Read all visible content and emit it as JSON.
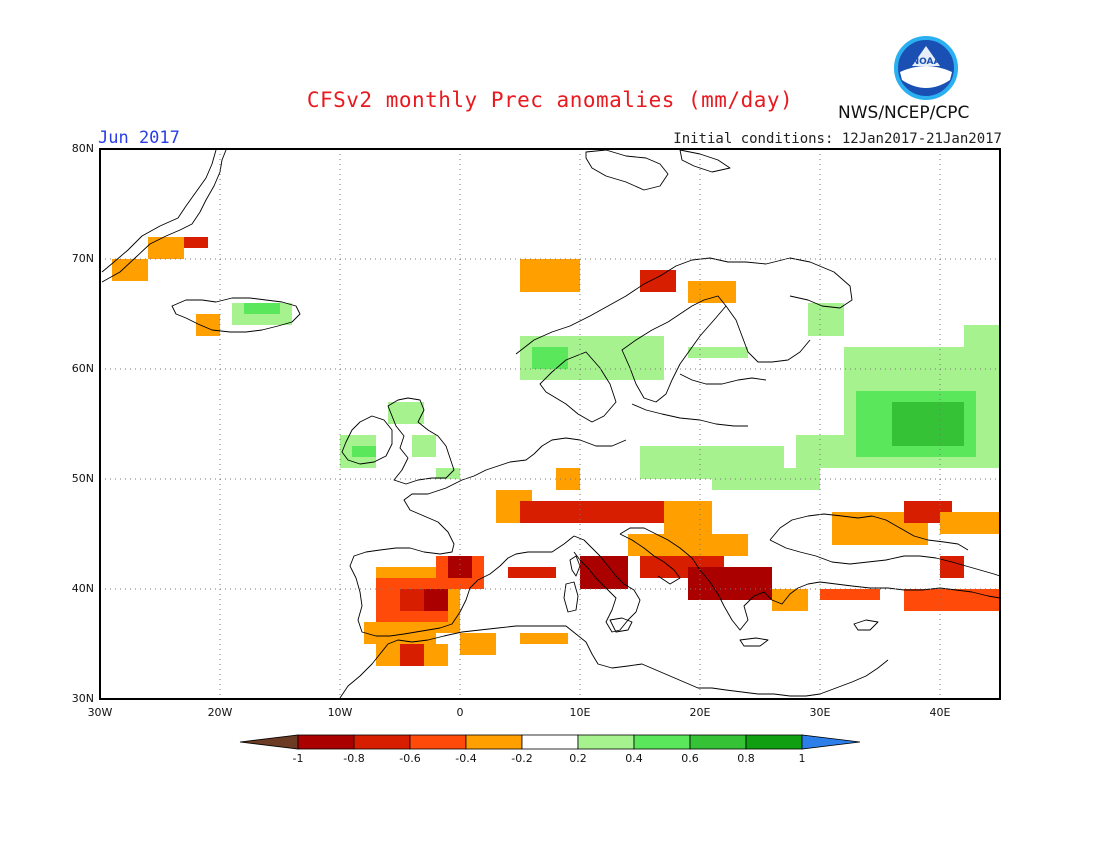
{
  "title": "CFSv2 monthly Prec anomalies (mm/day)",
  "valid_month": "Jun 2017",
  "initial_conditions": "Initial conditions: 12Jan2017-21Jan2017",
  "agency": "NWS/NCEP/CPC",
  "logo_text": "NOAA",
  "lat_labels": [
    "80N",
    "70N",
    "60N",
    "50N",
    "40N",
    "30N"
  ],
  "lon_labels": [
    "30W",
    "20W",
    "10W",
    "0",
    "10E",
    "20E",
    "30E",
    "40E"
  ],
  "colorbar": {
    "labels": [
      "-1",
      "-0.8",
      "-0.6",
      "-0.4",
      "-0.2",
      "0.2",
      "0.4",
      "0.6",
      "0.8",
      "1"
    ],
    "colors": [
      "#6b3b23",
      "#ab0000",
      "#d81e00",
      "#ff4a0a",
      "#ff9f00",
      "#ffffff",
      "#a6f28f",
      "#5be75b",
      "#36c237",
      "#119f12",
      "#2c7ee8"
    ]
  },
  "chart_data": {
    "type": "heatmap",
    "extent": {
      "lon": [
        -30,
        45
      ],
      "lat": [
        30,
        80
      ]
    },
    "cell_size_deg": 1,
    "palette": {
      "L0": "#ff9f00",
      "L1": "#ff4a0a",
      "L2": "#d81e00",
      "L3": "#ab0000",
      "L4": "#7a3a22",
      "P1": "#a6f28f",
      "P2": "#5be75b",
      "P3": "#36c237"
    },
    "regions": [
      {
        "level": "L0",
        "lon": [
          -29,
          -26
        ],
        "lat": [
          68,
          70
        ]
      },
      {
        "level": "L0",
        "lon": [
          -26,
          -23
        ],
        "lat": [
          70,
          72
        ]
      },
      {
        "level": "L2",
        "lon": [
          -23,
          -21
        ],
        "lat": [
          71,
          72
        ]
      },
      {
        "level": "L0",
        "lon": [
          -22,
          -20
        ],
        "lat": [
          63,
          65
        ]
      },
      {
        "level": "P1",
        "lon": [
          -19,
          -14
        ],
        "lat": [
          64,
          66
        ]
      },
      {
        "level": "P2",
        "lon": [
          -18,
          -15
        ],
        "lat": [
          65,
          66
        ]
      },
      {
        "level": "P1",
        "lon": [
          -10,
          -7
        ],
        "lat": [
          51,
          54
        ]
      },
      {
        "level": "P2",
        "lon": [
          -9,
          -7
        ],
        "lat": [
          52,
          53
        ]
      },
      {
        "level": "P1",
        "lon": [
          -6,
          -3
        ],
        "lat": [
          55,
          57
        ]
      },
      {
        "level": "P1",
        "lon": [
          -4,
          -2
        ],
        "lat": [
          52,
          54
        ]
      },
      {
        "level": "P1",
        "lon": [
          -2,
          0
        ],
        "lat": [
          50,
          51
        ]
      },
      {
        "level": "L0",
        "lon": [
          5,
          10
        ],
        "lat": [
          67,
          70
        ]
      },
      {
        "level": "L2",
        "lon": [
          15,
          18
        ],
        "lat": [
          67,
          69
        ]
      },
      {
        "level": "L0",
        "lon": [
          19,
          23
        ],
        "lat": [
          66,
          68
        ]
      },
      {
        "level": "P1",
        "lon": [
          5,
          17
        ],
        "lat": [
          59,
          63
        ]
      },
      {
        "level": "P2",
        "lon": [
          6,
          9
        ],
        "lat": [
          60,
          62
        ]
      },
      {
        "level": "P1",
        "lon": [
          19,
          24
        ],
        "lat": [
          61,
          62
        ]
      },
      {
        "level": "P1",
        "lon": [
          29,
          32
        ],
        "lat": [
          63,
          66
        ]
      },
      {
        "level": "P1",
        "lon": [
          15,
          27
        ],
        "lat": [
          50,
          53
        ]
      },
      {
        "level": "P1",
        "lon": [
          21,
          30
        ],
        "lat": [
          49,
          51
        ]
      },
      {
        "level": "P1",
        "lon": [
          28,
          33
        ],
        "lat": [
          51,
          54
        ]
      },
      {
        "level": "P1",
        "lon": [
          32,
          45
        ],
        "lat": [
          51,
          62
        ]
      },
      {
        "level": "P2",
        "lon": [
          33,
          43
        ],
        "lat": [
          52,
          58
        ]
      },
      {
        "level": "P3",
        "lon": [
          36,
          42
        ],
        "lat": [
          53,
          57
        ]
      },
      {
        "level": "P1",
        "lon": [
          42,
          45
        ],
        "lat": [
          60,
          64
        ]
      },
      {
        "level": "L0",
        "lon": [
          8,
          10
        ],
        "lat": [
          49,
          51
        ]
      },
      {
        "level": "L0",
        "lon": [
          3,
          6
        ],
        "lat": [
          46,
          49
        ]
      },
      {
        "level": "L2",
        "lon": [
          5,
          17
        ],
        "lat": [
          46,
          48
        ]
      },
      {
        "level": "L0",
        "lon": [
          17,
          21
        ],
        "lat": [
          45,
          48
        ]
      },
      {
        "level": "L0",
        "lon": [
          14,
          17
        ],
        "lat": [
          43,
          45
        ]
      },
      {
        "level": "L2",
        "lon": [
          4,
          8
        ],
        "lat": [
          41,
          42
        ]
      },
      {
        "level": "L3",
        "lon": [
          10,
          14
        ],
        "lat": [
          40,
          43
        ]
      },
      {
        "level": "L2",
        "lon": [
          15,
          22
        ],
        "lat": [
          41,
          43
        ]
      },
      {
        "level": "L3",
        "lon": [
          19,
          26
        ],
        "lat": [
          39,
          42
        ]
      },
      {
        "level": "L0",
        "lon": [
          26,
          29
        ],
        "lat": [
          38,
          40
        ]
      },
      {
        "level": "L0",
        "lon": [
          17,
          24
        ],
        "lat": [
          43,
          45
        ]
      },
      {
        "level": "L0",
        "lon": [
          31,
          39
        ],
        "lat": [
          44,
          47
        ]
      },
      {
        "level": "L2",
        "lon": [
          37,
          41
        ],
        "lat": [
          46,
          48
        ]
      },
      {
        "level": "L0",
        "lon": [
          40,
          45
        ],
        "lat": [
          45,
          47
        ]
      },
      {
        "level": "L1",
        "lon": [
          30,
          35
        ],
        "lat": [
          39,
          40
        ]
      },
      {
        "level": "L1",
        "lon": [
          37,
          45
        ],
        "lat": [
          38,
          40
        ]
      },
      {
        "level": "L2",
        "lon": [
          40,
          42
        ],
        "lat": [
          41,
          43
        ]
      },
      {
        "level": "L0",
        "lon": [
          -7,
          0
        ],
        "lat": [
          36,
          42
        ]
      },
      {
        "level": "L1",
        "lon": [
          -7,
          -1
        ],
        "lat": [
          37,
          41
        ]
      },
      {
        "level": "L2",
        "lon": [
          -5,
          -1
        ],
        "lat": [
          38,
          40
        ]
      },
      {
        "level": "L3",
        "lon": [
          -3,
          -1
        ],
        "lat": [
          38,
          40
        ]
      },
      {
        "level": "L1",
        "lon": [
          -2,
          2
        ],
        "lat": [
          40,
          43
        ]
      },
      {
        "level": "L3",
        "lon": [
          -1,
          1
        ],
        "lat": [
          41,
          43
        ]
      },
      {
        "level": "L0",
        "lon": [
          -8,
          -2
        ],
        "lat": [
          35,
          37
        ]
      },
      {
        "level": "L0",
        "lon": [
          -7,
          -1
        ],
        "lat": [
          33,
          35
        ]
      },
      {
        "level": "L2",
        "lon": [
          -5,
          -3
        ],
        "lat": [
          33,
          35
        ]
      },
      {
        "level": "L0",
        "lon": [
          0,
          3
        ],
        "lat": [
          34,
          36
        ]
      },
      {
        "level": "L0",
        "lon": [
          5,
          9
        ],
        "lat": [
          35,
          36
        ]
      }
    ]
  }
}
